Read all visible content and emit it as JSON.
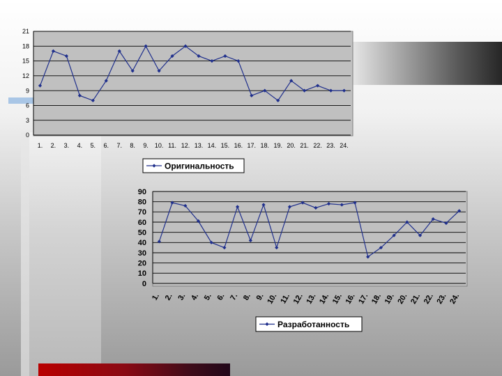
{
  "chart_data": [
    {
      "type": "line",
      "categories": [
        "1.",
        "2.",
        "3.",
        "4.",
        "5.",
        "6.",
        "7.",
        "8.",
        "9.",
        "10.",
        "11.",
        "12.",
        "13.",
        "14.",
        "15.",
        "16.",
        "17.",
        "18.",
        "19.",
        "20.",
        "21.",
        "22.",
        "23.",
        "24."
      ],
      "series": [
        {
          "name": "Оригинальность",
          "values": [
            10,
            17,
            16,
            8,
            7,
            11,
            17,
            13,
            18,
            13,
            16,
            18,
            16,
            15,
            16,
            15,
            8,
            9,
            7,
            11,
            9,
            10,
            9,
            9
          ]
        }
      ],
      "yticks": [
        "0",
        "3",
        "6",
        "9",
        "12",
        "15",
        "18",
        "21"
      ],
      "ylim": [
        0,
        21
      ],
      "grid": true,
      "legend": "bottom",
      "line_color": "#1f2f8c",
      "plot_bg": "#c0c0c0"
    },
    {
      "type": "line",
      "categories": [
        "1.",
        "2.",
        "3.",
        "4.",
        "5.",
        "6.",
        "7.",
        "8.",
        "9.",
        "10.",
        "11.",
        "12.",
        "13.",
        "14.",
        "15.",
        "16.",
        "17.",
        "18.",
        "19.",
        "20.",
        "21.",
        "22.",
        "23.",
        "24."
      ],
      "series": [
        {
          "name": "Разработанность",
          "values": [
            41,
            79,
            76,
            61,
            40,
            35,
            75,
            42,
            77,
            35,
            75,
            79,
            74,
            78,
            77,
            79,
            26,
            35,
            47,
            60,
            47,
            63,
            59,
            71
          ]
        }
      ],
      "yticks": [
        "0",
        "10",
        "20",
        "30",
        "40",
        "50",
        "60",
        "70",
        "80",
        "90"
      ],
      "ylim": [
        0,
        90
      ],
      "grid": true,
      "legend": "bottom",
      "line_color": "#1f2f8c",
      "plot_bg": "#c0c0c0"
    }
  ]
}
